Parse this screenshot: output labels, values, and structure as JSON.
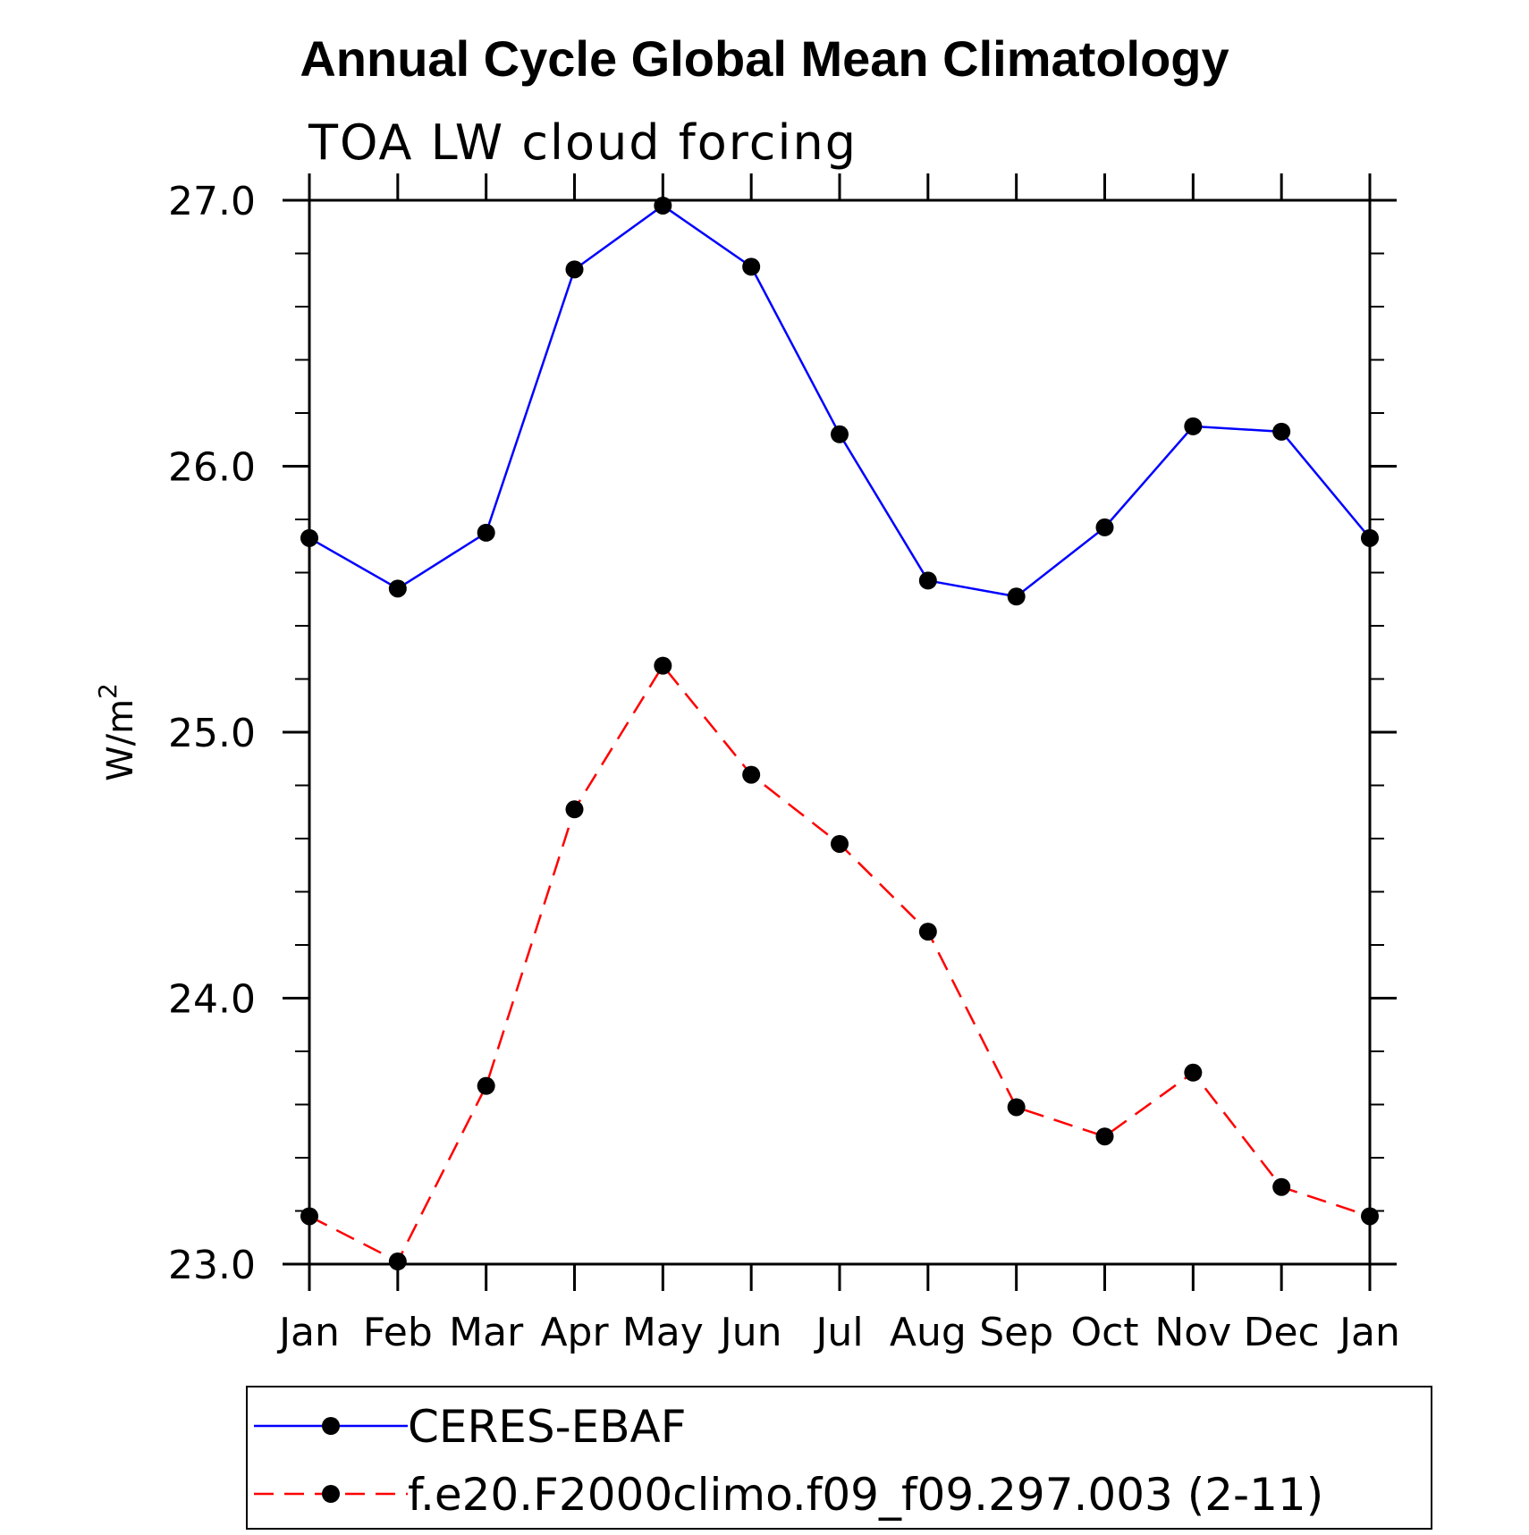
{
  "chart_data": {
    "type": "line",
    "title": "Annual Cycle Global Mean Climatology",
    "subtitle": "TOA LW cloud forcing",
    "xlabel": "",
    "ylabel": "W/m",
    "ylabel_superscript": "2",
    "categories": [
      "Jan",
      "Feb",
      "Mar",
      "Apr",
      "May",
      "Jun",
      "Jul",
      "Aug",
      "Sep",
      "Oct",
      "Nov",
      "Dec",
      "Jan"
    ],
    "ylim": [
      23.0,
      27.0
    ],
    "yticks": [
      "23.0",
      "24.0",
      "25.0",
      "26.0",
      "27.0"
    ],
    "yticks_values": [
      23.0,
      24.0,
      25.0,
      26.0,
      27.0
    ],
    "y_minor_step": 0.2,
    "grid": false,
    "legend_position": "bottom",
    "series": [
      {
        "name": "CERES-EBAF",
        "color": "#0000ff",
        "dash": "solid",
        "values": [
          25.73,
          25.54,
          25.75,
          26.74,
          26.98,
          26.75,
          26.12,
          25.57,
          25.51,
          25.77,
          26.15,
          26.13,
          25.73
        ]
      },
      {
        "name": "f.e20.F2000climo.f09_f09.297.003 (2-11)",
        "color": "#ff0000",
        "dash": "dashed",
        "values": [
          23.18,
          23.01,
          23.67,
          24.71,
          25.25,
          24.84,
          24.58,
          24.25,
          23.59,
          23.48,
          23.72,
          23.29,
          23.18
        ]
      }
    ],
    "marker_color": "#000000"
  }
}
